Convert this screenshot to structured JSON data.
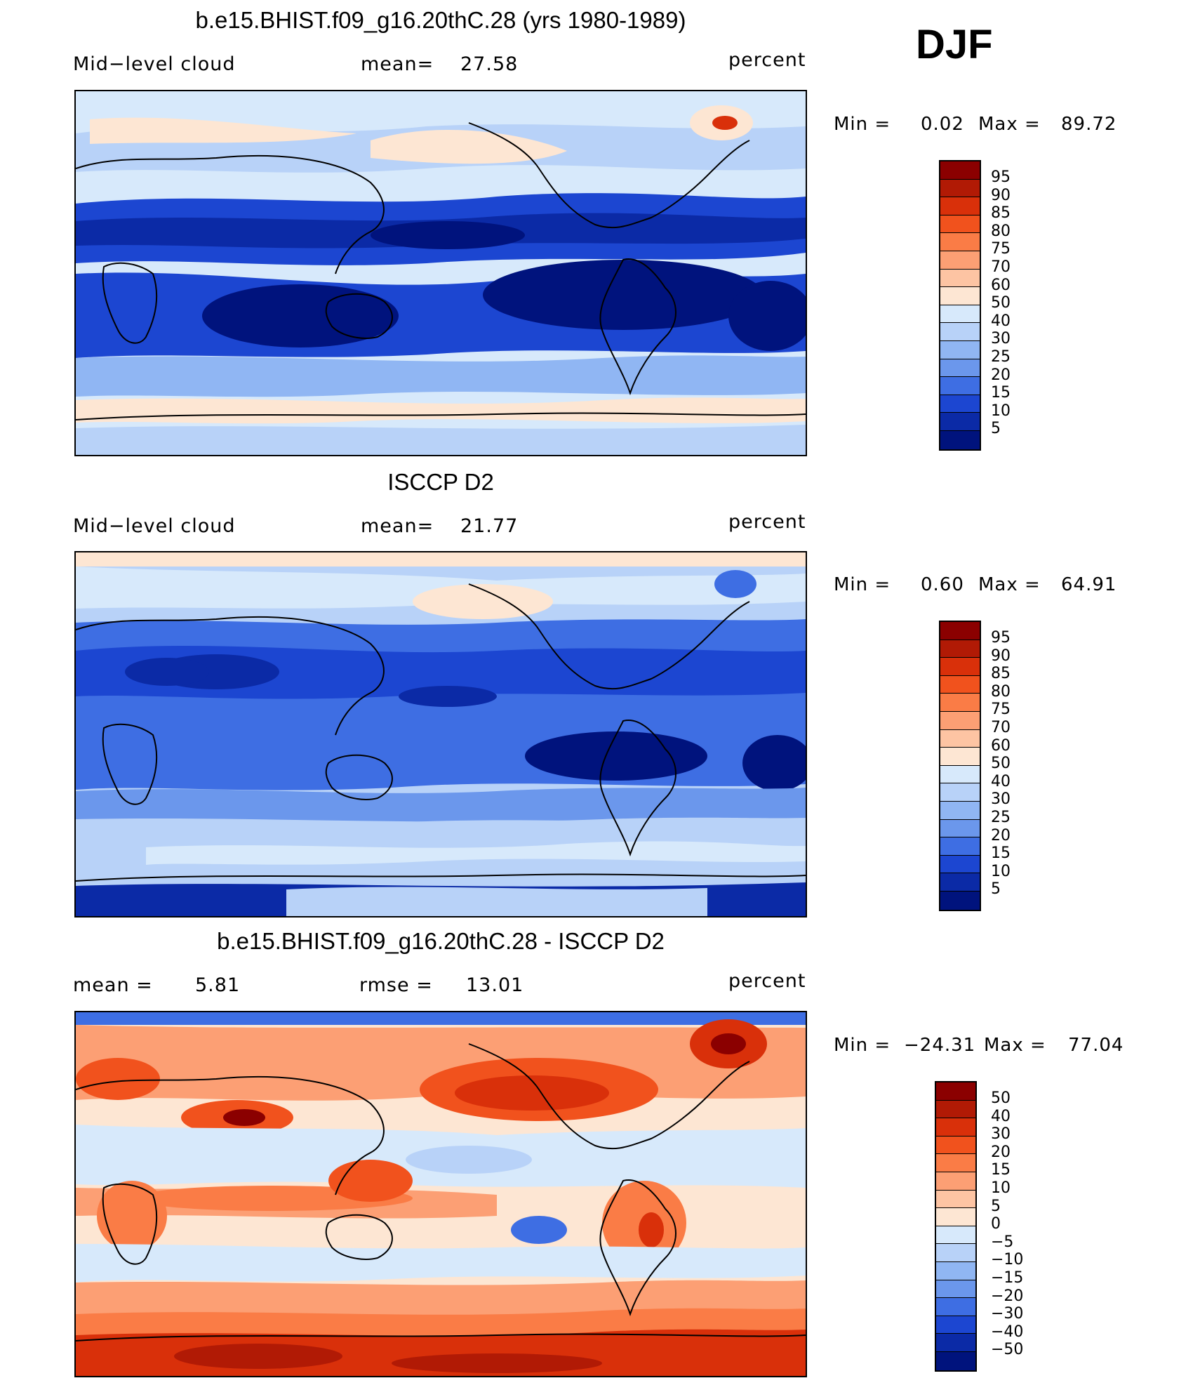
{
  "season": "DJF",
  "panels": [
    {
      "title": "b.e15.BHIST.f09_g16.20thC.28 (yrs 1980-1989)",
      "left_label": "Mid−level cloud",
      "center_label": "mean=",
      "center_value": "27.58",
      "right_label": "percent",
      "min_label": "Min  =",
      "min_value": "0.02",
      "max_label": "Max  =",
      "max_value": "89.72",
      "colorbar_labels": [
        "95",
        "90",
        "85",
        "80",
        "75",
        "70",
        "60",
        "50",
        "40",
        "30",
        "25",
        "20",
        "15",
        "10",
        "5"
      ],
      "colorbar_colors": [
        "#8b0000",
        "#b11a05",
        "#d9300a",
        "#f1521d",
        "#fa7c46",
        "#fc9f74",
        "#fdc4a3",
        "#fde6d3",
        "#d7e9fb",
        "#b8d2f8",
        "#90b6f3",
        "#6b97ec",
        "#3e6ee3",
        "#1c46d1",
        "#0b2aa6",
        "#00137d"
      ]
    },
    {
      "title": "ISCCP D2",
      "left_label": "Mid−level cloud",
      "center_label": "mean=",
      "center_value": "21.77",
      "right_label": "percent",
      "min_label": "Min  =",
      "min_value": "0.60",
      "max_label": "Max  =",
      "max_value": "64.91",
      "colorbar_labels": [
        "95",
        "90",
        "85",
        "80",
        "75",
        "70",
        "60",
        "50",
        "40",
        "30",
        "25",
        "20",
        "15",
        "10",
        "5"
      ],
      "colorbar_colors": [
        "#8b0000",
        "#b11a05",
        "#d9300a",
        "#f1521d",
        "#fa7c46",
        "#fc9f74",
        "#fdc4a3",
        "#fde6d3",
        "#d7e9fb",
        "#b8d2f8",
        "#90b6f3",
        "#6b97ec",
        "#3e6ee3",
        "#1c46d1",
        "#0b2aa6",
        "#00137d"
      ]
    },
    {
      "title": "b.e15.BHIST.f09_g16.20thC.28 - ISCCP D2",
      "left_label": "mean  =",
      "left_value": "5.81",
      "center_label": "rmse  =",
      "center_value": "13.01",
      "right_label": "percent",
      "min_label": "Min  =",
      "min_value": "−24.31",
      "max_label": "Max  =",
      "max_value": "77.04",
      "colorbar_labels": [
        "50",
        "40",
        "30",
        "20",
        "15",
        "10",
        "5",
        "0",
        "−5",
        "−10",
        "−15",
        "−20",
        "−30",
        "−40",
        "−50"
      ],
      "colorbar_colors": [
        "#8b0000",
        "#b11a05",
        "#d9300a",
        "#f1521d",
        "#fa7c46",
        "#fc9f74",
        "#fdc4a3",
        "#fde6d3",
        "#d7e9fb",
        "#b8d2f8",
        "#90b6f3",
        "#6b97ec",
        "#3e6ee3",
        "#1c46d1",
        "#0b2aa6",
        "#00137d"
      ]
    }
  ]
}
